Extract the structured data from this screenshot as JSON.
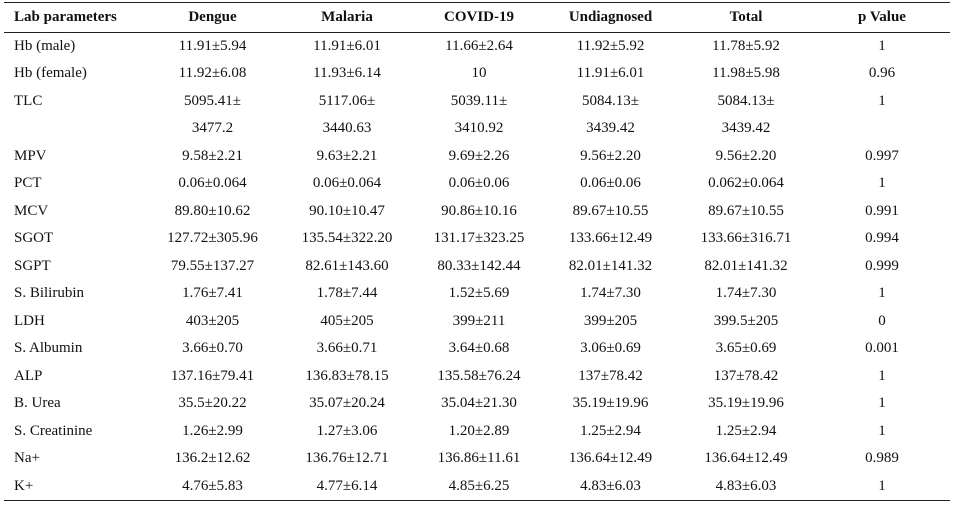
{
  "table": {
    "headers": [
      "Lab parameters",
      "Dengue",
      "Malaria",
      "COVID-19",
      "Undiagnosed",
      "Total",
      "p Value"
    ],
    "rows": [
      [
        "Hb (male)",
        "11.91±5.94",
        "11.91±6.01",
        "11.66±2.64",
        "11.92±5.92",
        "11.78±5.92",
        "1"
      ],
      [
        "Hb (female)",
        "11.92±6.08",
        "11.93±6.14",
        "10",
        "11.91±6.01",
        "11.98±5.98",
        "0.96"
      ],
      [
        "TLC",
        "5095.41±",
        "5117.06±",
        "5039.11±",
        "5084.13±",
        "5084.13±",
        "1"
      ],
      [
        "",
        "3477.2",
        "3440.63",
        "3410.92",
        "3439.42",
        "3439.42",
        ""
      ],
      [
        "MPV",
        "9.58±2.21",
        "9.63±2.21",
        "9.69±2.26",
        "9.56±2.20",
        "9.56±2.20",
        "0.997"
      ],
      [
        "PCT",
        "0.06±0.064",
        "0.06±0.064",
        "0.06±0.06",
        "0.06±0.06",
        "0.062±0.064",
        "1"
      ],
      [
        "MCV",
        "89.80±10.62",
        "90.10±10.47",
        "90.86±10.16",
        "89.67±10.55",
        "89.67±10.55",
        "0.991"
      ],
      [
        "SGOT",
        "127.72±305.96",
        "135.54±322.20",
        "131.17±323.25",
        "133.66±12.49",
        "133.66±316.71",
        "0.994"
      ],
      [
        "SGPT",
        "79.55±137.27",
        "82.61±143.60",
        "80.33±142.44",
        "82.01±141.32",
        "82.01±141.32",
        "0.999"
      ],
      [
        "S. Bilirubin",
        "1.76±7.41",
        "1.78±7.44",
        "1.52±5.69",
        "1.74±7.30",
        "1.74±7.30",
        "1"
      ],
      [
        "LDH",
        "403±205",
        "405±205",
        "399±211",
        "399±205",
        "399.5±205",
        "0"
      ],
      [
        "S. Albumin",
        "3.66±0.70",
        "3.66±0.71",
        "3.64±0.68",
        "3.06±0.69",
        "3.65±0.69",
        "0.001"
      ],
      [
        "ALP",
        "137.16±79.41",
        "136.83±78.15",
        "135.58±76.24",
        "137±78.42",
        "137±78.42",
        "1"
      ],
      [
        "B. Urea",
        "35.5±20.22",
        "35.07±20.24",
        "35.04±21.30",
        "35.19±19.96",
        "35.19±19.96",
        "1"
      ],
      [
        "S. Creatinine",
        "1.26±2.99",
        "1.27±3.06",
        "1.20±2.89",
        "1.25±2.94",
        "1.25±2.94",
        "1"
      ],
      [
        "Na+",
        "136.2±12.62",
        "136.76±12.71",
        "136.86±11.61",
        "136.64±12.49",
        "136.64±12.49",
        "0.989"
      ],
      [
        "K+",
        "4.76±5.83",
        "4.77±6.14",
        "4.85±6.25",
        "4.83±6.03",
        "4.83±6.03",
        "1"
      ]
    ]
  }
}
